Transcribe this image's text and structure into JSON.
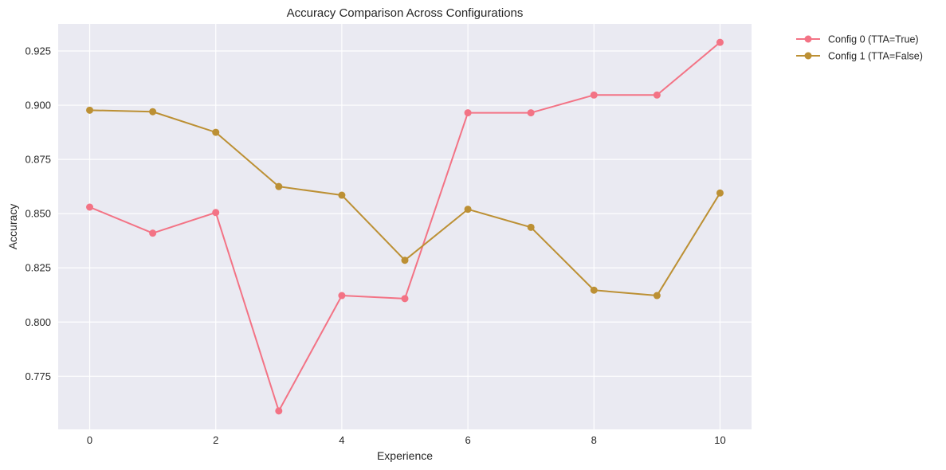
{
  "chart_data": {
    "type": "line",
    "title": "Accuracy Comparison Across Configurations",
    "xlabel": "Experience",
    "ylabel": "Accuracy",
    "x": [
      0,
      1,
      2,
      3,
      4,
      5,
      6,
      7,
      8,
      9,
      10
    ],
    "xlim": [
      -0.5,
      10.5
    ],
    "ylim": [
      0.7505,
      0.9375
    ],
    "xticks": [
      0,
      2,
      4,
      6,
      8,
      10
    ],
    "xtick_labels": [
      "0",
      "2",
      "4",
      "6",
      "8",
      "10"
    ],
    "yticks": [
      0.775,
      0.8,
      0.825,
      0.85,
      0.875,
      0.9,
      0.925
    ],
    "ytick_labels": [
      "0.775",
      "0.800",
      "0.825",
      "0.850",
      "0.875",
      "0.900",
      "0.925"
    ],
    "grid": true,
    "legend_position": "outside-top-right",
    "series": [
      {
        "name": "Config 0 (TTA=True)",
        "color": "#f37385",
        "values": [
          0.853,
          0.841,
          0.8505,
          0.759,
          0.8122,
          0.8108,
          0.8965,
          0.8965,
          0.9047,
          0.9047,
          0.929
        ]
      },
      {
        "name": "Config 1 (TTA=False)",
        "color": "#bc9034",
        "values": [
          0.8977,
          0.897,
          0.8875,
          0.8625,
          0.8585,
          0.8285,
          0.852,
          0.8437,
          0.8147,
          0.8122,
          0.8595
        ]
      }
    ]
  }
}
